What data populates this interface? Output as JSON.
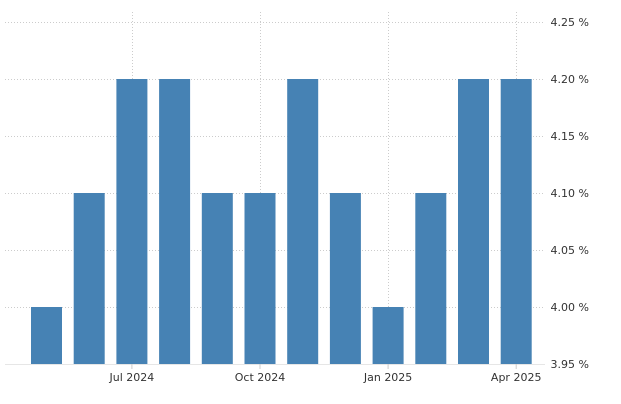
{
  "chart_data": {
    "type": "bar",
    "categories": [
      "2024-05",
      "2024-06",
      "2024-07",
      "2024-08",
      "2024-09",
      "2024-10",
      "2024-11",
      "2024-12",
      "2025-01",
      "2025-02",
      "2025-03",
      "2025-04"
    ],
    "values": [
      4.0,
      4.1,
      4.2,
      4.2,
      4.1,
      4.1,
      4.2,
      4.1,
      4.0,
      4.1,
      4.2,
      4.2
    ],
    "title": "",
    "xlabel": "",
    "ylabel": "",
    "ylim": [
      3.95,
      4.25
    ],
    "y_ticks": [
      "4.25 %",
      "4.20 %",
      "4.15 %",
      "4.10 %",
      "4.05 %",
      "4.00 %",
      "3.95 %"
    ],
    "y_tick_values": [
      4.25,
      4.2,
      4.15,
      4.1,
      4.05,
      4.0,
      3.95
    ],
    "x_ticks": [
      "Jul 2024",
      "Oct 2024",
      "Jan 2025",
      "Apr 2025"
    ],
    "x_tick_categories": [
      "2024-07",
      "2024-10",
      "2025-01",
      "2025-04"
    ],
    "grid": true,
    "legend": "none",
    "bar_color": "#4682b4",
    "grid_color": "#cccccc"
  }
}
